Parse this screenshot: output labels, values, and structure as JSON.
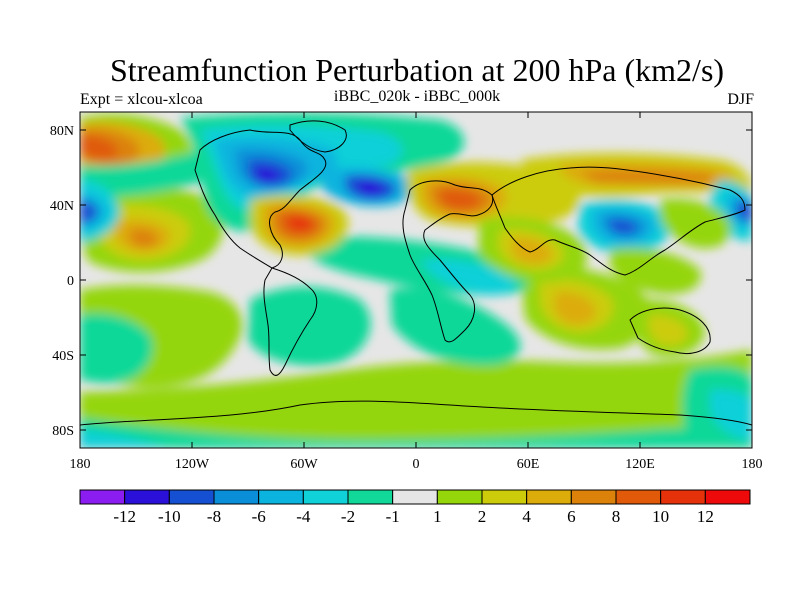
{
  "title": "Streamfunction Perturbation at 200 hPa (km2/s)",
  "left_subtitle": "Expt = xlcou-xlcoa",
  "center_subtitle": "iBBC_020k - iBBC_000k",
  "right_subtitle": "DJF",
  "lat_labels": [
    "80N",
    "40N",
    "0",
    "40S",
    "80S"
  ],
  "lon_labels": [
    "180",
    "120W",
    "60W",
    "0",
    "60E",
    "120E",
    "180"
  ],
  "colorbar": {
    "labels": [
      "-12",
      "-10",
      "-8",
      "-6",
      "-4",
      "-2",
      "-1",
      "1",
      "2",
      "4",
      "6",
      "8",
      "10",
      "12"
    ],
    "colors": [
      "#8c1df0",
      "#2a10d8",
      "#1650d2",
      "#0a8ed8",
      "#0ab4de",
      "#10d0d8",
      "#11d898",
      "#e6e6e6",
      "#94d60a",
      "#cccc0a",
      "#dcac0a",
      "#dc820a",
      "#e05a0a",
      "#e6320a",
      "#ee0a0a"
    ]
  },
  "colors": {
    "neutral_fill": "#e6e6e6",
    "coastline": "#000000"
  }
}
